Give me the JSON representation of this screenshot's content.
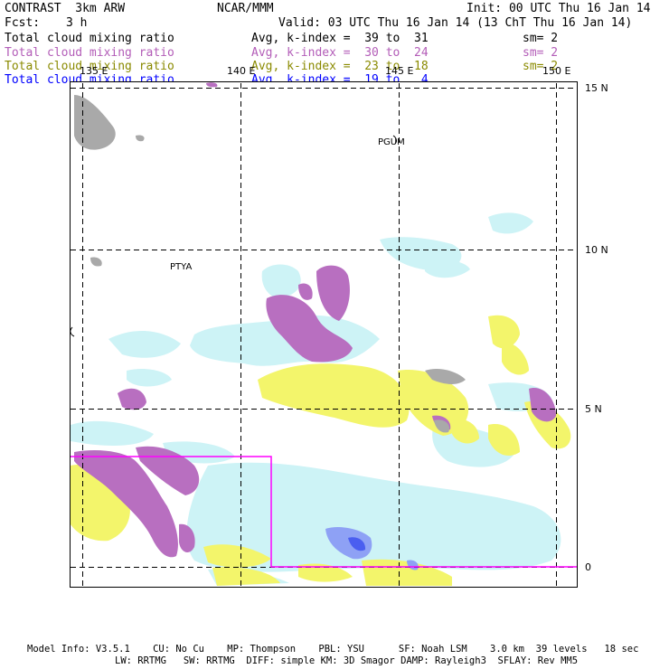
{
  "header": {
    "title": "CONTRAST  3km ARW",
    "org": "NCAR/MMM",
    "init": "Init: 00 UTC Thu 16 Jan 14",
    "fcst_label": "Fcst:",
    "fcst_value": "3 h",
    "valid": "Valid: 03 UTC Thu 16 Jan 14 (13 ChT Thu 16 Jan 14)"
  },
  "legend": [
    {
      "field": "Total cloud mixing ratio",
      "range": "Avg, k-index =  39 to  31",
      "sm": "sm= 2",
      "color": "#000000"
    },
    {
      "field": "Total cloud mixing ratio",
      "range": "Avg, k-index =  30 to  24",
      "sm": "sm= 2",
      "color": "#b35db8"
    },
    {
      "field": "Total cloud mixing ratio",
      "range": "Avg, k-index =  23 to  18",
      "sm": "sm= 2",
      "color": "#8a8a00"
    },
    {
      "field": "Total cloud mixing ratio",
      "range": "Avg, k-index =  19 to   4",
      "sm": "",
      "color": "#0000ff"
    }
  ],
  "map": {
    "lon_labels": [
      "135 E",
      "140 E",
      "145 E",
      "150 E"
    ],
    "lat_labels": [
      "15 N",
      "10 N",
      "5 N",
      "0"
    ],
    "stations": [
      "PGUM",
      "PTYA"
    ],
    "colors": {
      "gray": "#a9a9a9",
      "purple": "#b86fc0",
      "yellow": "#f3f56b",
      "lightblue": "#cdf3f6",
      "blue": "#5a6cf0",
      "box": "#ff00ff"
    }
  },
  "footer": {
    "line1": "Model Info: V3.5.1    CU: No Cu    MP: Thompson    PBL: YSU      SF: Noah LSM    3.0 km  39 levels   18 sec",
    "line2": "LW: RRTMG   SW: RRTMG  DIFF: simple KM: 3D Smagor DAMP: Rayleigh3  SFLAY: Rev MM5"
  }
}
